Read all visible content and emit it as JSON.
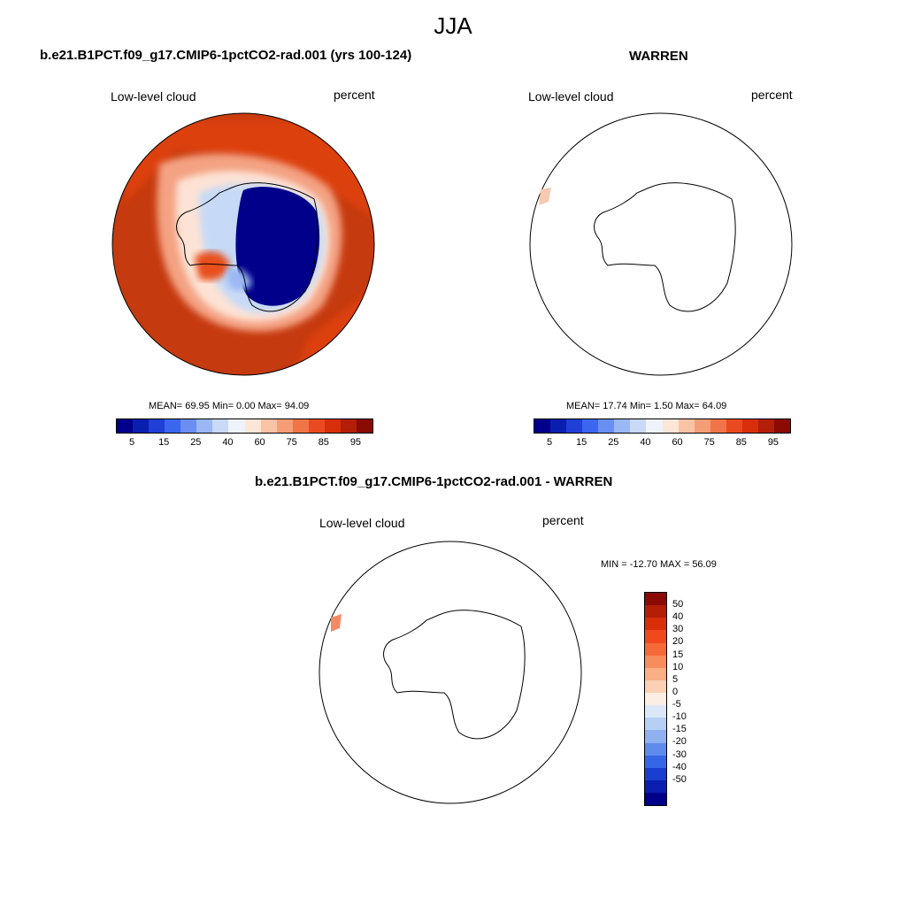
{
  "season": "JJA",
  "panel1": {
    "title": "b.e21.B1PCT.f09_g17.CMIP6-1pctCO2-rad.001 (yrs 100-124)",
    "left_label": "Low-level cloud",
    "right_label": "percent",
    "stats": "MEAN=  69.95  Min=   0.00  Max=  94.09"
  },
  "panel2": {
    "title": "WARREN",
    "left_label": "Low-level cloud",
    "right_label": "percent",
    "stats": "MEAN=  17.74  Min=   1.50  Max=  64.09"
  },
  "panel3": {
    "title": "b.e21.B1PCT.f09_g17.CMIP6-1pctCO2-rad.001 - WARREN",
    "left_label": "Low-level cloud",
    "right_label": "percent",
    "stats": "MIN = -12.70 MAX =  56.09"
  },
  "abs_colorbar": {
    "ticks": [
      "5",
      "15",
      "25",
      "40",
      "60",
      "75",
      "85",
      "95"
    ],
    "colors": [
      "#00008b",
      "#0a1fb0",
      "#1f3fd6",
      "#3a66f0",
      "#6a8ff2",
      "#9ab8f5",
      "#c8daf7",
      "#eef3fb",
      "#fde6d6",
      "#f9c3a5",
      "#f59d77",
      "#f07448",
      "#ea4a1f",
      "#d92e0a",
      "#b31e06",
      "#8b0a02"
    ]
  },
  "diff_colorbar": {
    "ticks": [
      "50",
      "40",
      "30",
      "20",
      "15",
      "10",
      "5",
      "0",
      "-5",
      "-10",
      "-15",
      "-20",
      "-30",
      "-40",
      "-50"
    ],
    "colors": [
      "#8b0a02",
      "#b31e06",
      "#d92e0a",
      "#f04a1c",
      "#f56a38",
      "#f78c5c",
      "#f9ae86",
      "#fbcfb3",
      "#fdeee3",
      "#dbe8f8",
      "#b7cff4",
      "#8fb1f0",
      "#5f8bec",
      "#3566e6",
      "#1a3fcf",
      "#0a1fb0",
      "#00008b"
    ]
  }
}
